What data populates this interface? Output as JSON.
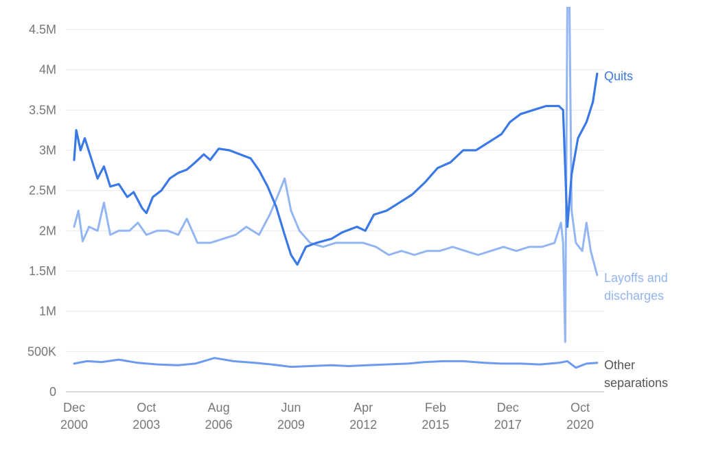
{
  "chart_data": {
    "type": "line",
    "title": "",
    "xlabel": "",
    "ylabel": "",
    "ylim": [
      0,
      4500000
    ],
    "grid": true,
    "y_ticks": [
      {
        "value": 0,
        "label": "0"
      },
      {
        "value": 500000,
        "label": "500K"
      },
      {
        "value": 1000000,
        "label": "1M"
      },
      {
        "value": 1500000,
        "label": "1.5M"
      },
      {
        "value": 2000000,
        "label": "2M"
      },
      {
        "value": 2500000,
        "label": "2.5M"
      },
      {
        "value": 3000000,
        "label": "3M"
      },
      {
        "value": 3500000,
        "label": "3.5M"
      },
      {
        "value": 4000000,
        "label": "4M"
      },
      {
        "value": 4500000,
        "label": "4.5M"
      }
    ],
    "x_ticks": [
      {
        "date": "2000-12",
        "label": [
          "Dec",
          "2000"
        ]
      },
      {
        "date": "2003-10",
        "label": [
          "Oct",
          "2003"
        ]
      },
      {
        "date": "2006-08",
        "label": [
          "Aug",
          "2006"
        ]
      },
      {
        "date": "2009-06",
        "label": [
          "Jun",
          "2009"
        ]
      },
      {
        "date": "2012-04",
        "label": [
          "Apr",
          "2012"
        ]
      },
      {
        "date": "2015-02",
        "label": [
          "Feb",
          "2015"
        ]
      },
      {
        "date": "2017-12",
        "label": [
          "Dec",
          "2017"
        ]
      },
      {
        "date": "2020-10",
        "label": [
          "Oct",
          "2020"
        ]
      }
    ],
    "series": [
      {
        "name": "Quits",
        "color": "#3a78e6",
        "label_lines": [
          "Quits"
        ],
        "points": [
          [
            "2000-12",
            2880000
          ],
          [
            "2001-01",
            3250000
          ],
          [
            "2001-03",
            3000000
          ],
          [
            "2001-05",
            3150000
          ],
          [
            "2001-08",
            2900000
          ],
          [
            "2001-11",
            2650000
          ],
          [
            "2002-02",
            2800000
          ],
          [
            "2002-05",
            2550000
          ],
          [
            "2002-09",
            2580000
          ],
          [
            "2003-01",
            2420000
          ],
          [
            "2003-04",
            2480000
          ],
          [
            "2003-08",
            2280000
          ],
          [
            "2003-10",
            2220000
          ],
          [
            "2004-01",
            2420000
          ],
          [
            "2004-05",
            2500000
          ],
          [
            "2004-09",
            2650000
          ],
          [
            "2005-01",
            2720000
          ],
          [
            "2005-05",
            2760000
          ],
          [
            "2005-09",
            2850000
          ],
          [
            "2006-01",
            2950000
          ],
          [
            "2006-04",
            2880000
          ],
          [
            "2006-08",
            3020000
          ],
          [
            "2007-01",
            3000000
          ],
          [
            "2007-06",
            2950000
          ],
          [
            "2007-11",
            2900000
          ],
          [
            "2008-03",
            2750000
          ],
          [
            "2008-07",
            2550000
          ],
          [
            "2008-11",
            2300000
          ],
          [
            "2009-03",
            1950000
          ],
          [
            "2009-06",
            1700000
          ],
          [
            "2009-09",
            1580000
          ],
          [
            "2010-01",
            1800000
          ],
          [
            "2010-06",
            1850000
          ],
          [
            "2011-01",
            1900000
          ],
          [
            "2011-06",
            1980000
          ],
          [
            "2012-01",
            2050000
          ],
          [
            "2012-05",
            2000000
          ],
          [
            "2012-09",
            2200000
          ],
          [
            "2013-03",
            2250000
          ],
          [
            "2013-09",
            2350000
          ],
          [
            "2014-03",
            2450000
          ],
          [
            "2014-09",
            2600000
          ],
          [
            "2015-03",
            2780000
          ],
          [
            "2015-09",
            2850000
          ],
          [
            "2016-03",
            3000000
          ],
          [
            "2016-09",
            3000000
          ],
          [
            "2017-03",
            3100000
          ],
          [
            "2017-09",
            3200000
          ],
          [
            "2018-01",
            3350000
          ],
          [
            "2018-06",
            3450000
          ],
          [
            "2018-12",
            3500000
          ],
          [
            "2019-06",
            3550000
          ],
          [
            "2019-12",
            3550000
          ],
          [
            "2020-02",
            3500000
          ],
          [
            "2020-04",
            2050000
          ],
          [
            "2020-06",
            2700000
          ],
          [
            "2020-09",
            3150000
          ],
          [
            "2021-01",
            3350000
          ],
          [
            "2021-04",
            3600000
          ],
          [
            "2021-06",
            3950000
          ]
        ]
      },
      {
        "name": "Layoffs and discharges",
        "color": "#93b5f2",
        "label_lines": [
          "Layoffs and",
          "discharges"
        ],
        "points": [
          [
            "2000-12",
            2050000
          ],
          [
            "2001-02",
            2250000
          ],
          [
            "2001-04",
            1870000
          ],
          [
            "2001-07",
            2050000
          ],
          [
            "2001-11",
            2000000
          ],
          [
            "2002-02",
            2350000
          ],
          [
            "2002-05",
            1950000
          ],
          [
            "2002-09",
            2000000
          ],
          [
            "2003-02",
            2000000
          ],
          [
            "2003-06",
            2100000
          ],
          [
            "2003-10",
            1950000
          ],
          [
            "2004-03",
            2000000
          ],
          [
            "2004-08",
            2000000
          ],
          [
            "2005-01",
            1950000
          ],
          [
            "2005-05",
            2150000
          ],
          [
            "2005-10",
            1850000
          ],
          [
            "2006-04",
            1850000
          ],
          [
            "2006-10",
            1900000
          ],
          [
            "2007-04",
            1950000
          ],
          [
            "2007-09",
            2050000
          ],
          [
            "2008-03",
            1950000
          ],
          [
            "2008-08",
            2200000
          ],
          [
            "2008-12",
            2450000
          ],
          [
            "2009-03",
            2650000
          ],
          [
            "2009-06",
            2250000
          ],
          [
            "2009-10",
            2000000
          ],
          [
            "2010-03",
            1850000
          ],
          [
            "2010-09",
            1800000
          ],
          [
            "2011-03",
            1850000
          ],
          [
            "2011-09",
            1850000
          ],
          [
            "2012-04",
            1850000
          ],
          [
            "2012-10",
            1800000
          ],
          [
            "2013-04",
            1700000
          ],
          [
            "2013-10",
            1750000
          ],
          [
            "2014-04",
            1700000
          ],
          [
            "2014-10",
            1750000
          ],
          [
            "2015-04",
            1750000
          ],
          [
            "2015-10",
            1800000
          ],
          [
            "2016-04",
            1750000
          ],
          [
            "2016-10",
            1700000
          ],
          [
            "2017-04",
            1750000
          ],
          [
            "2017-10",
            1800000
          ],
          [
            "2018-04",
            1750000
          ],
          [
            "2018-10",
            1800000
          ],
          [
            "2019-04",
            1800000
          ],
          [
            "2019-10",
            1850000
          ],
          [
            "2020-01",
            2100000
          ],
          [
            "2020-02",
            1850000
          ],
          [
            "2020-03",
            620000
          ],
          [
            "2020-04",
            4800000
          ],
          [
            "2020-05",
            4800000
          ],
          [
            "2020-06",
            2250000
          ],
          [
            "2020-08",
            1850000
          ],
          [
            "2020-11",
            1750000
          ],
          [
            "2021-01",
            2100000
          ],
          [
            "2021-03",
            1750000
          ],
          [
            "2021-06",
            1450000
          ]
        ]
      },
      {
        "name": "Other separations",
        "color": "#6b9af0",
        "label_lines": [
          "Other",
          "separations"
        ],
        "points": [
          [
            "2000-12",
            350000
          ],
          [
            "2001-06",
            380000
          ],
          [
            "2002-01",
            370000
          ],
          [
            "2002-09",
            400000
          ],
          [
            "2003-06",
            360000
          ],
          [
            "2004-03",
            340000
          ],
          [
            "2005-01",
            330000
          ],
          [
            "2005-09",
            350000
          ],
          [
            "2006-06",
            420000
          ],
          [
            "2007-03",
            380000
          ],
          [
            "2008-01",
            360000
          ],
          [
            "2008-09",
            340000
          ],
          [
            "2009-06",
            310000
          ],
          [
            "2010-03",
            320000
          ],
          [
            "2011-01",
            330000
          ],
          [
            "2011-09",
            320000
          ],
          [
            "2012-06",
            330000
          ],
          [
            "2013-03",
            340000
          ],
          [
            "2014-01",
            350000
          ],
          [
            "2014-09",
            370000
          ],
          [
            "2015-06",
            380000
          ],
          [
            "2016-03",
            380000
          ],
          [
            "2017-01",
            360000
          ],
          [
            "2017-09",
            350000
          ],
          [
            "2018-06",
            350000
          ],
          [
            "2019-03",
            340000
          ],
          [
            "2019-12",
            360000
          ],
          [
            "2020-04",
            380000
          ],
          [
            "2020-08",
            300000
          ],
          [
            "2021-01",
            350000
          ],
          [
            "2021-06",
            360000
          ]
        ]
      }
    ]
  }
}
